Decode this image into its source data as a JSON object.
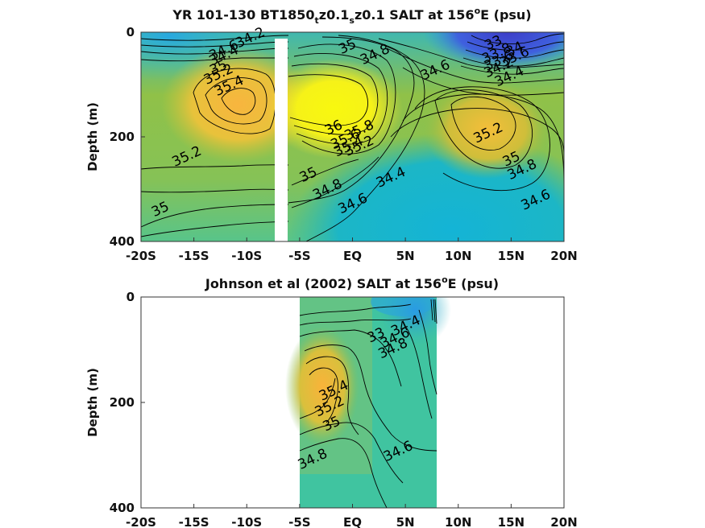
{
  "chart_data": [
    {
      "type": "heatmap",
      "title": "YR 101-130 BT1850",
      "title_parts": {
        "a": "YR 101-130 BT1850",
        "s1": "t",
        "b": "z0.1",
        "s2": "s",
        "c": "z0.1 SALT at 156",
        "sup": "o",
        "d": "E (psu)"
      },
      "ylabel": "Depth (m)",
      "xlim": [
        -20,
        20
      ],
      "ylim": [
        0,
        400
      ],
      "y_reversed": true,
      "x_ticks": [
        -20,
        -15,
        -10,
        -5,
        0,
        5,
        10,
        15,
        20
      ],
      "x_tick_labels": [
        "-20S",
        "-15S",
        "-10S",
        "-5S",
        "EQ",
        "5N",
        "10N",
        "15N",
        "20N"
      ],
      "y_ticks": [
        0,
        200,
        400
      ],
      "y_tick_labels": [
        "0",
        "200",
        "400"
      ],
      "gap_lon": [
        -8.0,
        -6.8
      ],
      "contour_labels": [
        {
          "text": "34.2",
          "x": -9.5,
          "y": 18
        },
        {
          "text": "34.4",
          "x": -12.0,
          "y": 52
        },
        {
          "text": "34.6",
          "x": -12.0,
          "y": 42
        },
        {
          "text": "35",
          "x": -12.5,
          "y": 75
        },
        {
          "text": "35.2",
          "x": -12.5,
          "y": 88
        },
        {
          "text": "35.4",
          "x": -11.5,
          "y": 110
        },
        {
          "text": "35",
          "x": -0.3,
          "y": 35
        },
        {
          "text": "34.8",
          "x": 2.3,
          "y": 50
        },
        {
          "text": "34.6",
          "x": 8.0,
          "y": 80
        },
        {
          "text": "33",
          "x": 13.5,
          "y": 28
        },
        {
          "text": "34",
          "x": 15.5,
          "y": 40
        },
        {
          "text": "33.8",
          "x": 13.8,
          "y": 48
        },
        {
          "text": "33.6",
          "x": 14.0,
          "y": 62
        },
        {
          "text": "33.6",
          "x": 15.5,
          "y": 55
        },
        {
          "text": "34.2",
          "x": 14.0,
          "y": 75
        },
        {
          "text": "34.4",
          "x": 15.0,
          "y": 92
        },
        {
          "text": "36",
          "x": -1.6,
          "y": 190
        },
        {
          "text": "35.8",
          "x": 0.8,
          "y": 195
        },
        {
          "text": "35.6",
          "x": -0.5,
          "y": 212
        },
        {
          "text": "35.4",
          "x": -0.2,
          "y": 226
        },
        {
          "text": "35.2",
          "x": 0.8,
          "y": 225
        },
        {
          "text": "35.2",
          "x": 13.0,
          "y": 200
        },
        {
          "text": "35",
          "x": 15.2,
          "y": 250
        },
        {
          "text": "34.8",
          "x": 16.2,
          "y": 270
        },
        {
          "text": "34.6",
          "x": 17.5,
          "y": 328
        },
        {
          "text": "35.2",
          "x": -15.5,
          "y": 245
        },
        {
          "text": "35",
          "x": -4.0,
          "y": 280
        },
        {
          "text": "34.8",
          "x": -2.2,
          "y": 308
        },
        {
          "text": "34.6",
          "x": 0.2,
          "y": 335
        },
        {
          "text": "34.4",
          "x": 3.8,
          "y": 285
        },
        {
          "text": "35",
          "x": -18.0,
          "y": 346
        }
      ]
    },
    {
      "type": "heatmap",
      "title": "Johnson et al (2002) SALT at 156oE (psu)",
      "title_parts": {
        "a": "Johnson et al (2002) SALT at 156",
        "sup": "o",
        "b": "E (psu)"
      },
      "ylabel": "Depth (m)",
      "xlim": [
        -20,
        20
      ],
      "ylim": [
        0,
        400
      ],
      "y_reversed": true,
      "x_ticks": [
        -20,
        -15,
        -10,
        -5,
        0,
        5,
        10,
        15,
        20
      ],
      "x_tick_labels": [
        "-20S",
        "-15S",
        "-10S",
        "-5S",
        "EQ",
        "5N",
        "10N",
        "15N",
        "20N"
      ],
      "y_ticks": [
        0,
        200,
        400
      ],
      "y_tick_labels": [
        "0",
        "200",
        "400"
      ],
      "data_extent_lon": [
        -5,
        8
      ],
      "contour_labels": [
        {
          "text": "34.4",
          "x": 5.2,
          "y": 62
        },
        {
          "text": "33",
          "x": 2.4,
          "y": 80
        },
        {
          "text": "34.6",
          "x": 4.2,
          "y": 85
        },
        {
          "text": "34.8",
          "x": 4.0,
          "y": 105
        },
        {
          "text": "35.4",
          "x": -1.6,
          "y": 185
        },
        {
          "text": "35.2",
          "x": -2.0,
          "y": 215
        },
        {
          "text": "35",
          "x": -1.8,
          "y": 248
        },
        {
          "text": "34.8",
          "x": -3.6,
          "y": 315
        },
        {
          "text": "34.6",
          "x": 4.5,
          "y": 300
        }
      ]
    }
  ]
}
